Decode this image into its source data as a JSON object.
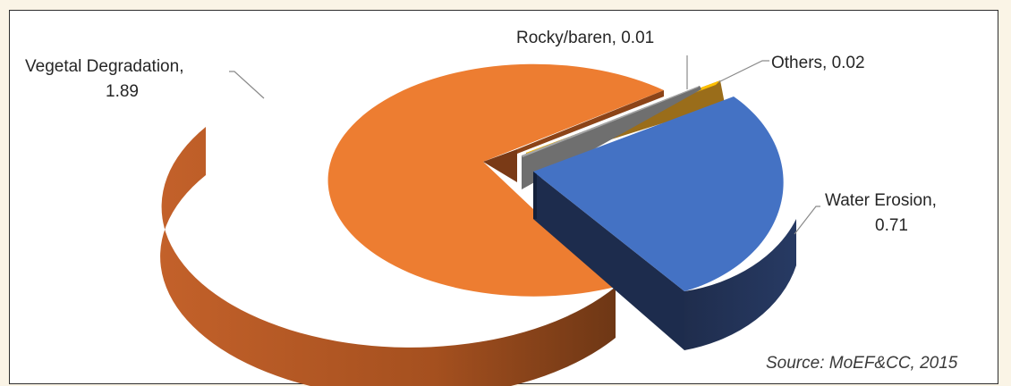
{
  "chart_data": {
    "type": "pie",
    "style": "3d-exploded",
    "slices": [
      {
        "name": "Vegetal Degradation",
        "value": 1.89,
        "color": "#ed7d31",
        "label_line1": "Vegetal Degradation,",
        "label_line2": "1.89"
      },
      {
        "name": "Water Erosion",
        "value": 0.71,
        "color": "#4472c4",
        "label_line1": "Water Erosion,",
        "label_line2": "0.71"
      },
      {
        "name": "Rocky/baren",
        "value": 0.01,
        "color": "#a5a5a5",
        "label_line1": "Rocky/baren, 0.01",
        "label_line2": ""
      },
      {
        "name": "Others",
        "value": 0.02,
        "color": "#ffc000",
        "label_line1": "Others, 0.02",
        "label_line2": ""
      }
    ]
  },
  "source": "Source: MoEF&CC, 2015"
}
